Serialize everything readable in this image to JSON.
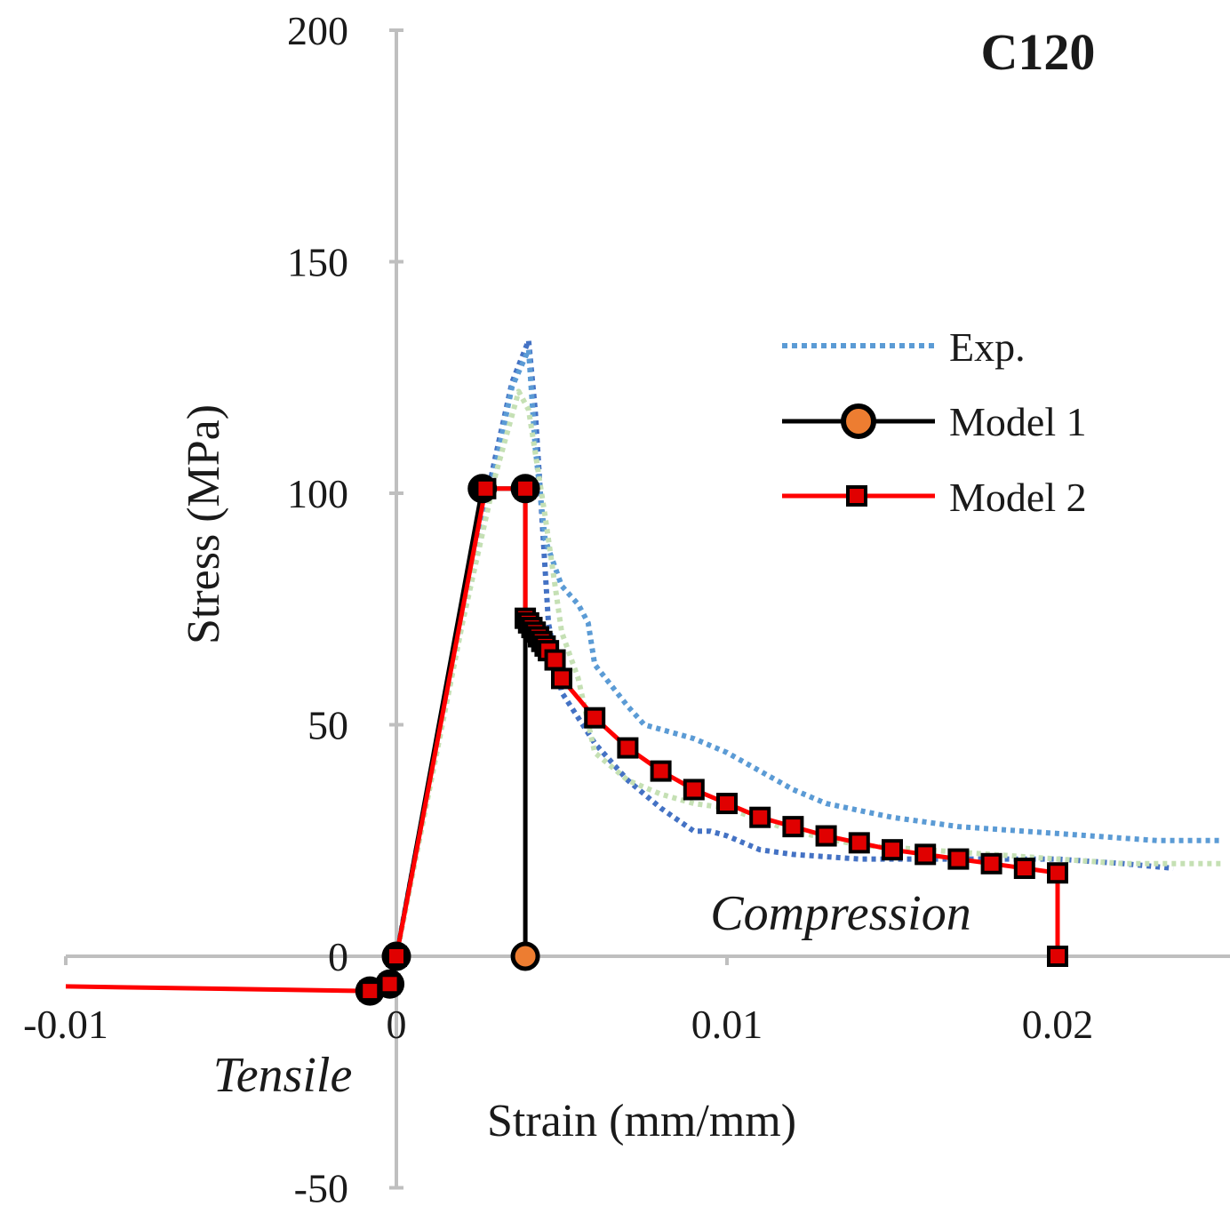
{
  "chart_data": {
    "type": "line",
    "title": "C120",
    "xlabel": "Strain (mm/mm)",
    "ylabel": "Stress (MPa)",
    "xlim": [
      -0.01,
      0.025
    ],
    "ylim": [
      -50,
      200
    ],
    "x_ticks": [
      -0.01,
      0,
      0.01,
      0.02
    ],
    "x_tick_labels": [
      "-0.01",
      "0",
      "0.01",
      "0.02"
    ],
    "y_ticks": [
      -50,
      0,
      50,
      100,
      150,
      200
    ],
    "y_tick_labels": [
      "-50",
      "0",
      "50",
      "100",
      "150",
      "200"
    ],
    "grid": false,
    "legend_position": "right",
    "annotations": [
      "Compression",
      "Tensile"
    ],
    "series": [
      {
        "name": "Exp.",
        "style": "dotted",
        "colors": [
          "#4472c4",
          "#5b9bd5",
          "#c5e0b4"
        ],
        "curves": [
          {
            "color": "#4472c4",
            "x": [
              0,
              0.001,
              0.002,
              0.003,
              0.0035,
              0.004,
              0.0042,
              0.0044,
              0.0046,
              0.005,
              0.006,
              0.007,
              0.008,
              0.009,
              0.0095,
              0.01,
              0.011,
              0.012,
              0.014,
              0.016,
              0.018,
              0.02,
              0.022,
              0.0235
            ],
            "y": [
              0,
              38,
              74,
              108,
              124,
              133,
              118,
              95,
              72,
              57,
              46,
              38,
              32,
              27,
              27,
              26,
              23,
              22,
              21,
              21,
              21,
              21,
              20,
              19
            ]
          },
          {
            "color": "#5b9bd5",
            "x": [
              0,
              0.001,
              0.002,
              0.003,
              0.0035,
              0.004,
              0.0042,
              0.0045,
              0.005,
              0.0055,
              0.0058,
              0.006,
              0.007,
              0.0075,
              0.008,
              0.009,
              0.01,
              0.011,
              0.012,
              0.013,
              0.015,
              0.017,
              0.019,
              0.021,
              0.023,
              0.025
            ],
            "y": [
              0,
              37,
              73,
              106,
              123,
              131,
              110,
              90,
              80,
              76,
              72,
              63,
              54,
              50,
              49,
              47,
              44,
              40,
              36,
              33,
              30,
              28,
              27,
              26,
              25,
              25
            ]
          },
          {
            "color": "#c5e0b4",
            "x": [
              0,
              0.001,
              0.002,
              0.003,
              0.0037,
              0.004,
              0.0045,
              0.005,
              0.0055,
              0.006,
              0.007,
              0.008,
              0.009,
              0.01,
              0.012,
              0.014,
              0.016,
              0.018,
              0.02,
              0.022,
              0.025
            ],
            "y": [
              0,
              36,
              72,
              104,
              122,
              118,
              95,
              70,
              60,
              44,
              38,
              35,
              33,
              32,
              27,
              24,
              23,
              22,
              21,
              20,
              20
            ]
          }
        ]
      },
      {
        "name": "Model 1",
        "color": "#000000",
        "marker": "circle",
        "marker_color": "#ed7d31",
        "x": [
          -0.0008,
          -0.0002,
          0,
          0.0026,
          0.0039,
          0.0039
        ],
        "y": [
          -7.5,
          -6,
          0,
          101,
          101,
          0
        ]
      },
      {
        "name": "Model 2",
        "color": "#ff0000",
        "marker": "square",
        "marker_color": "#e00000",
        "x": [
          -0.01,
          -0.0008,
          -0.0002,
          0,
          0.0027,
          0.0039,
          0.0039,
          0.004,
          0.0041,
          0.0042,
          0.0043,
          0.0044,
          0.0045,
          0.0046,
          0.0048,
          0.005,
          0.006,
          0.007,
          0.008,
          0.009,
          0.01,
          0.011,
          0.012,
          0.013,
          0.014,
          0.015,
          0.016,
          0.017,
          0.018,
          0.019,
          0.02,
          0.02
        ],
        "y": [
          -6.5,
          -7.5,
          -6,
          0,
          101,
          101,
          73,
          72,
          71,
          70,
          69,
          68,
          67,
          66,
          64,
          60,
          51.5,
          45,
          40,
          36,
          33,
          30,
          28,
          26,
          24.5,
          23,
          22,
          21,
          20,
          19,
          18,
          0
        ]
      }
    ]
  }
}
